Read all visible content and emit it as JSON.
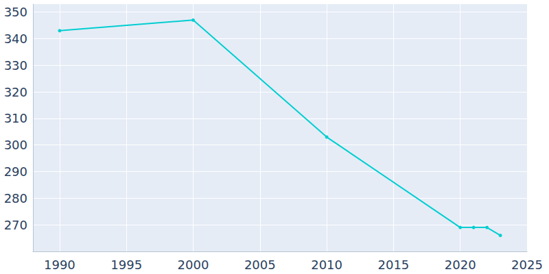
{
  "chart_data": {
    "type": "line",
    "x": [
      1990,
      2000,
      2010,
      2020,
      2021,
      2022,
      2023
    ],
    "values": [
      343,
      347,
      303,
      269,
      269,
      269,
      266
    ],
    "color": "#00ced1",
    "marker": "circle",
    "xlim": [
      1988,
      2025
    ],
    "xticks": [
      1990,
      1995,
      2000,
      2005,
      2010,
      2015,
      2020,
      2025
    ],
    "ylim": [
      260,
      353
    ],
    "yticks": [
      270,
      280,
      290,
      300,
      310,
      320,
      330,
      340,
      350
    ],
    "grid": true
  }
}
